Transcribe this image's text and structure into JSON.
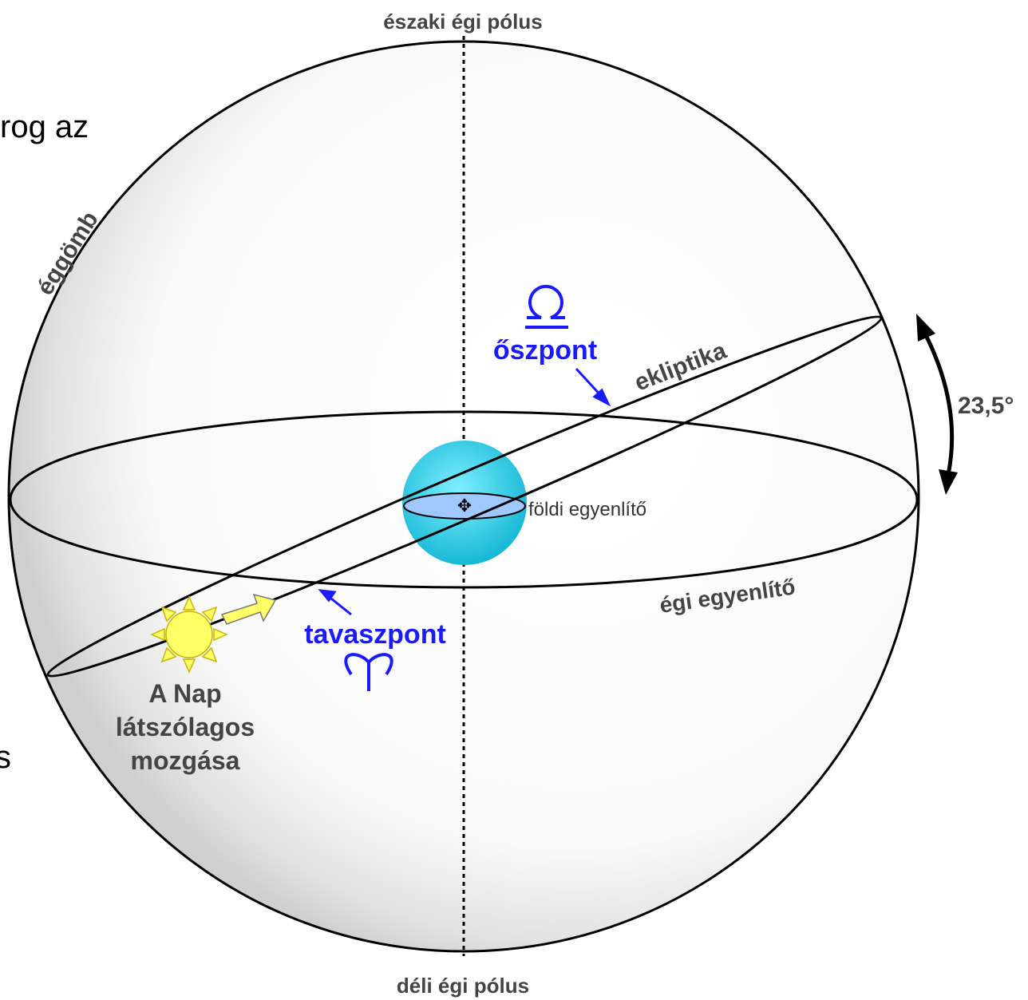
{
  "labels": {
    "north_pole": "északi égi pólus",
    "south_pole": "déli égi pólus",
    "fragment_top": "rog az",
    "fragment_bottom": "s",
    "sphere": "éggömb",
    "ecliptic": "ekliptika",
    "autumn_point": "őszpont",
    "spring_point": "tavaszpont",
    "tilt": "23,5°",
    "earth_equator": "földi egyenlítő",
    "celestial_equator": "égi egyenlítő",
    "sun_caption": [
      "A Nap",
      "látszólagos",
      "mozgása"
    ]
  }
}
